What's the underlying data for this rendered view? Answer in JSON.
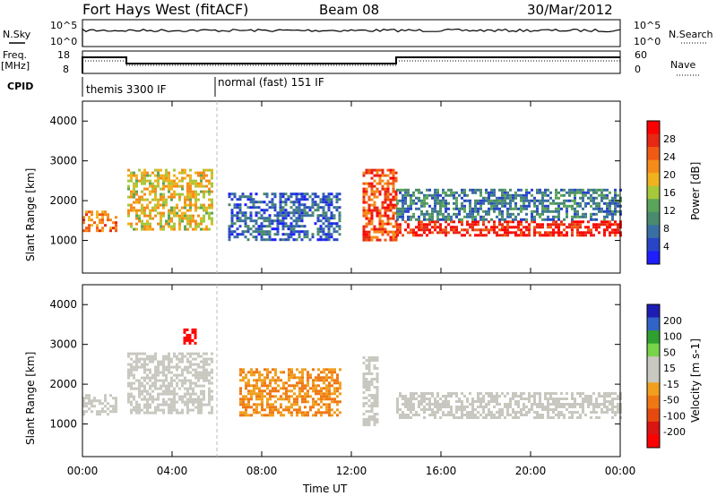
{
  "header": {
    "station": "Fort Hays West (fitACF)",
    "beam": "Beam 08",
    "date": "30/Mar/2012"
  },
  "status_panels": {
    "nsky_label": "N.Sky",
    "nsearch_label": "N.Search",
    "noise_ticks": [
      "10^5",
      "10^0"
    ],
    "freq_label": "Freq.",
    "freq_unit": "[MHz]",
    "freq_ticks": [
      "18",
      "8"
    ],
    "nave_label": "Nave",
    "nave_ticks": [
      "60",
      "0"
    ],
    "cpid_label": "CPID",
    "cpid_modes": [
      {
        "label": "themis 3300 IF",
        "start_hour": 0,
        "end_hour": 6
      },
      {
        "label": "normal (fast) 151 IF",
        "start_hour": 6,
        "end_hour": 24
      }
    ]
  },
  "colors": {
    "power": [
      "#1e1eff",
      "#2845c8",
      "#3a6fa3",
      "#4a8a6e",
      "#5aa55a",
      "#a6c83a",
      "#f0b21e",
      "#f58c19",
      "#f05a14",
      "#e62814",
      "#ff0000"
    ],
    "velocity": [
      "#1e1eb4",
      "#3264c8",
      "#2fa02f",
      "#78d24a",
      "#c8c8c0",
      "#c8c8c0",
      "#f0a01e",
      "#f07814",
      "#e64a10",
      "#dc1414",
      "#ff0000"
    ]
  },
  "chart_data": [
    {
      "type": "heatmap",
      "name": "Power",
      "ylabel": "Slant Range [km]",
      "colorbar_label": "Power [dB]",
      "colorbar_ticks": [
        "28",
        "24",
        "20",
        "16",
        "12",
        "8",
        "4"
      ],
      "ylim": [
        180,
        4500
      ],
      "y_ticks": [
        "4000",
        "3000",
        "2000",
        "1000"
      ],
      "bands": [
        {
          "t": [
            0.0,
            1.5
          ],
          "r": [
            1250,
            1750
          ],
          "v": 22
        },
        {
          "t": [
            2.0,
            5.8
          ],
          "r": [
            1300,
            2800
          ],
          "v": 18
        },
        {
          "t": [
            6.5,
            11.5
          ],
          "r": [
            1000,
            2200
          ],
          "v": 8
        },
        {
          "t": [
            12.5,
            14.0
          ],
          "r": [
            1000,
            2800
          ],
          "v": 24
        },
        {
          "t": [
            14.0,
            24.0
          ],
          "r": [
            1150,
            1500
          ],
          "v": 26
        },
        {
          "t": [
            14.0,
            24.0
          ],
          "r": [
            1500,
            2300
          ],
          "v": 10
        }
      ]
    },
    {
      "type": "heatmap",
      "name": "Velocity",
      "ylabel": "Slant Range [km]",
      "colorbar_label": "Velocity [m s-1]",
      "colorbar_ticks": [
        "200",
        "100",
        "50",
        "15",
        "-15",
        "-50",
        "-100",
        "-200"
      ],
      "ylim": [
        180,
        4500
      ],
      "y_ticks": [
        "4000",
        "3000",
        "2000",
        "1000"
      ],
      "bands": [
        {
          "t": [
            0.0,
            1.5
          ],
          "r": [
            1250,
            1750
          ],
          "v": 0
        },
        {
          "t": [
            2.0,
            5.8
          ],
          "r": [
            1300,
            2800
          ],
          "v": 0
        },
        {
          "t": [
            4.5,
            5.0
          ],
          "r": [
            3000,
            3400
          ],
          "v": -200
        },
        {
          "t": [
            7.0,
            11.5
          ],
          "r": [
            1200,
            2400
          ],
          "v": -60
        },
        {
          "t": [
            12.5,
            13.2
          ],
          "r": [
            1000,
            2700
          ],
          "v": 30
        },
        {
          "t": [
            14.0,
            24.0
          ],
          "r": [
            1150,
            1800
          ],
          "v": 0
        }
      ]
    }
  ],
  "xaxis": {
    "label": "Time UT",
    "ticks": [
      "00:00",
      "04:00",
      "08:00",
      "12:00",
      "16:00",
      "20:00",
      "00:00"
    ],
    "xlim": [
      0,
      24
    ]
  }
}
